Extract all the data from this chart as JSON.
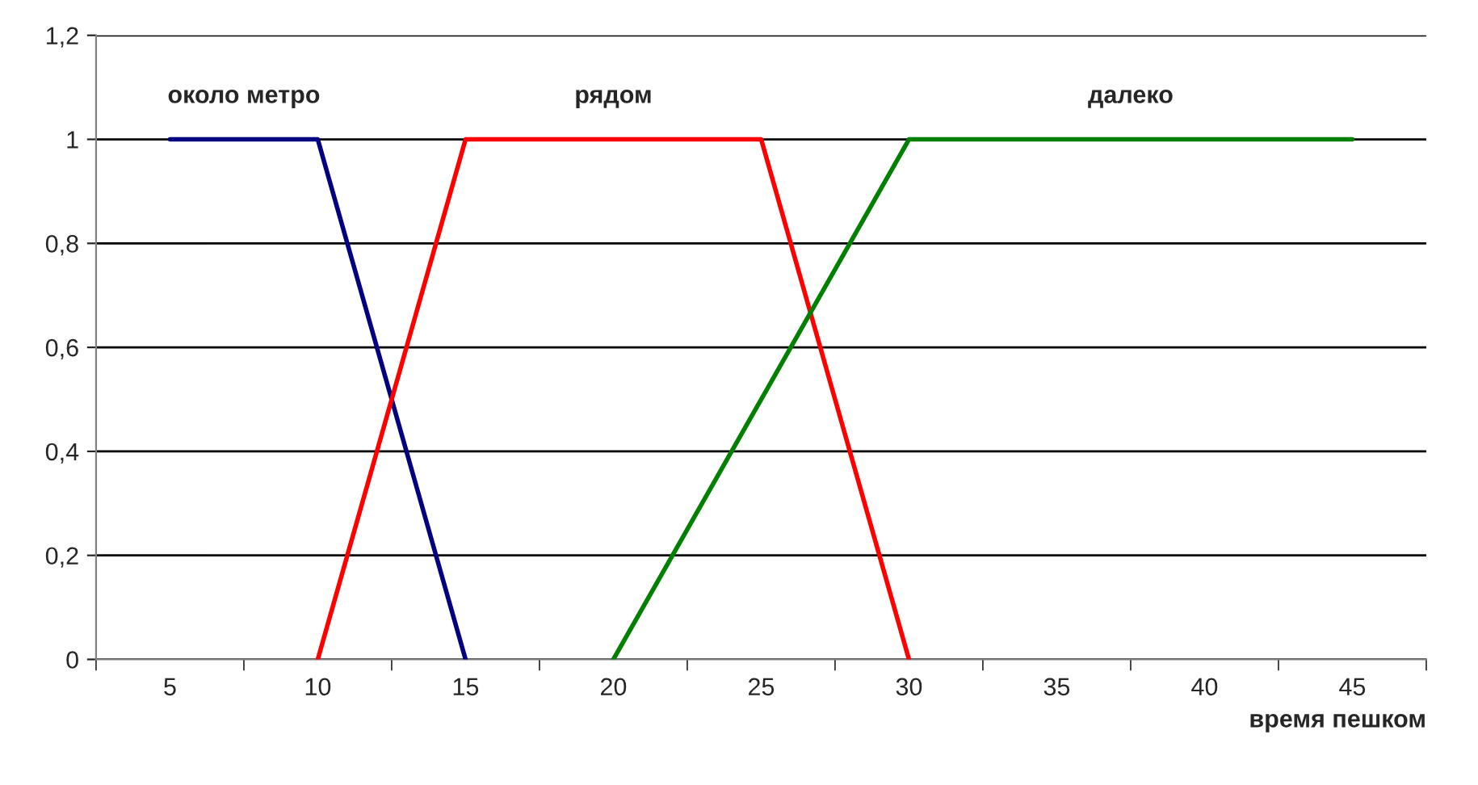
{
  "chart_data": {
    "type": "line",
    "xlabel": "время пешком",
    "categories": [
      "5",
      "10",
      "15",
      "20",
      "25",
      "30",
      "35",
      "40",
      "45"
    ],
    "series": [
      {
        "name": "около метро",
        "color": "#000080",
        "values": [
          1,
          1,
          0,
          null,
          null,
          null,
          null,
          null,
          null
        ]
      },
      {
        "name": "рядом",
        "color": "#ff0000",
        "values": [
          null,
          0,
          1,
          1,
          1,
          0,
          null,
          null,
          null
        ]
      },
      {
        "name": "далеко",
        "color": "#008000",
        "values": [
          null,
          null,
          null,
          0,
          0.5,
          1,
          1,
          1,
          1
        ]
      }
    ],
    "ylim": [
      0,
      1.2
    ],
    "yticks": [
      0,
      {
        "value": 0.2,
        "label": "0,2"
      },
      {
        "value": 0.4,
        "label": "0,4"
      },
      {
        "value": 0.6,
        "label": "0,6"
      },
      {
        "value": 0.8,
        "label": "0,8"
      },
      1,
      {
        "value": 1.2,
        "label": "1,2"
      }
    ],
    "grid": "y"
  }
}
